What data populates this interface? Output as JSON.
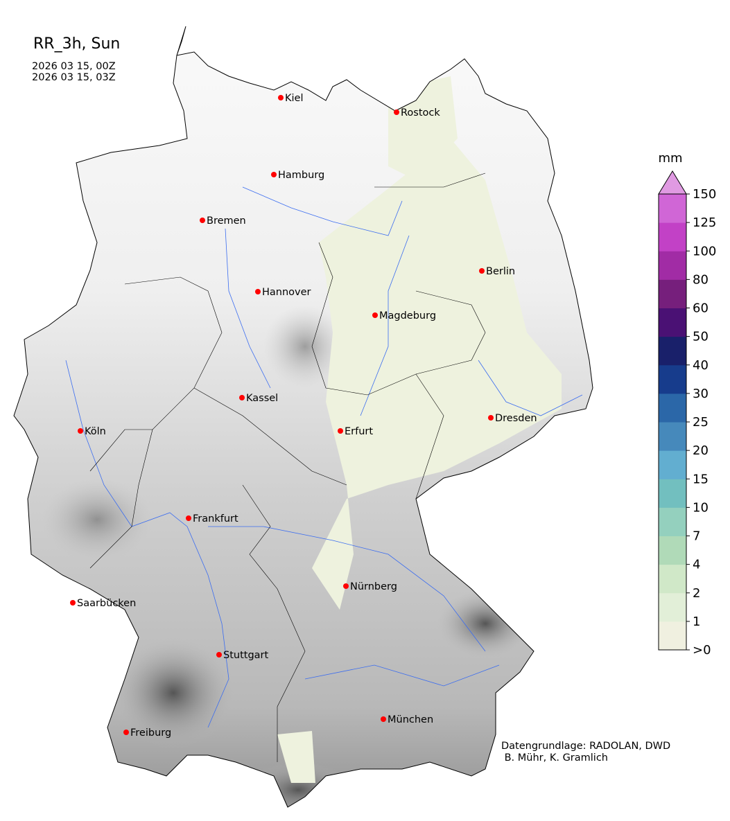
{
  "title": "RR_3h, Sun",
  "time_lines": [
    "2026 03 15, 00Z",
    "2026 03 15, 03Z"
  ],
  "credit": [
    "Datengrundlage: RADOLAN, DWD",
    " B. Mühr, K. Gramlich"
  ],
  "colorbar": {
    "unit": "mm",
    "ticks": [
      ">0",
      "1",
      "2",
      "4",
      "7",
      "10",
      "15",
      "20",
      "25",
      "30",
      "40",
      "50",
      "60",
      "80",
      "100",
      "125",
      "150"
    ],
    "colors": [
      "#f0f0e0",
      "#e2efd8",
      "#d0e8c8",
      "#b0dab8",
      "#94d0be",
      "#72bfbf",
      "#62aed0",
      "#4689bb",
      "#2b67a8",
      "#173c8c",
      "#19206a",
      "#4a1174",
      "#761f7c",
      "#a12ca5",
      "#c241c6",
      "#d066d6"
    ],
    "extend_color": "#e09ae2"
  },
  "cities": [
    "Kiel",
    "Rostock",
    "Hamburg",
    "Bremen",
    "Berlin",
    "Hannover",
    "Magdeburg",
    "Kassel",
    "Dresden",
    "Köln",
    "Erfurt",
    "Frankfurt",
    "Nürnberg",
    "Saarbücken",
    "Stuttgart",
    "München",
    "Freiburg"
  ],
  "colors": {
    "city_marker": "#ff0000",
    "rivers": "#3a6cf0",
    "terrain_low": "#f6f6f6",
    "terrain_high": "#555555"
  }
}
